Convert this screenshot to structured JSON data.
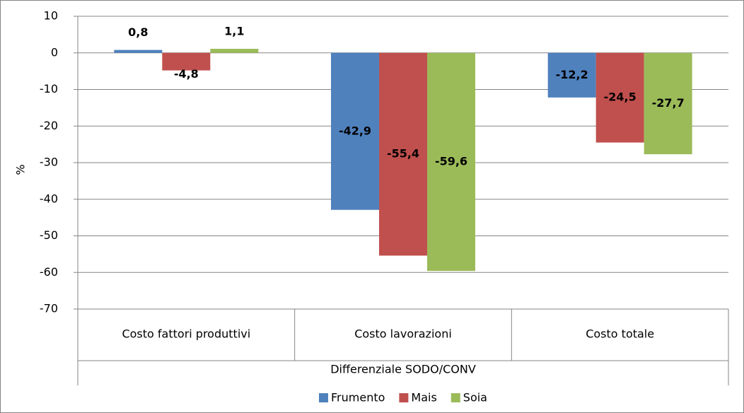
{
  "chart_data": {
    "type": "bar",
    "y_label": "%",
    "x_label": "Differenziale SODO/CONV",
    "categories": [
      "Costo fattori produttivi",
      "Costo lavorazioni",
      "Costo totale"
    ],
    "series": [
      {
        "name": "Frumento",
        "color": "#4f81bd",
        "values": [
          0.8,
          -42.9,
          -12.2
        ],
        "value_labels": [
          "0,8",
          "-42,9",
          "-12,2"
        ]
      },
      {
        "name": "Mais",
        "color": "#c0504d",
        "values": [
          -4.8,
          -55.4,
          -24.5
        ],
        "value_labels": [
          "-4,8",
          "-55,4",
          "-24,5"
        ]
      },
      {
        "name": "Soia",
        "color": "#9bbb59",
        "values": [
          1.1,
          -59.6,
          -27.7
        ],
        "value_labels": [
          "1,1",
          "-59,6",
          "-27,7"
        ]
      }
    ],
    "ylim": [
      -70,
      10
    ],
    "yticks": [
      10,
      0,
      -10,
      -20,
      -30,
      -40,
      -50,
      -60,
      -70
    ],
    "grid": true,
    "legend": "bottom"
  }
}
